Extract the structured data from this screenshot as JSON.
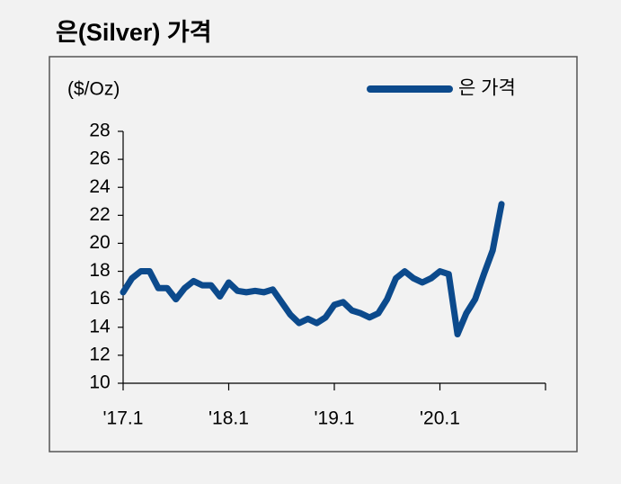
{
  "chart_data": {
    "type": "line",
    "title": "은(Silver) 가격",
    "y_label": "($/Oz)",
    "categories": [
      "'17.1",
      null,
      null,
      null,
      null,
      null,
      null,
      null,
      null,
      null,
      null,
      null,
      "'18.1",
      null,
      null,
      null,
      null,
      null,
      null,
      null,
      null,
      null,
      null,
      null,
      "'19.1",
      null,
      null,
      null,
      null,
      null,
      null,
      null,
      null,
      null,
      null,
      null,
      "'20.1",
      null,
      null,
      null,
      null,
      null,
      null,
      null,
      null,
      null,
      null,
      null,
      null
    ],
    "series": [
      {
        "name": "은 가격",
        "color": "#0c4a8c",
        "values": [
          16.5,
          17.5,
          18.0,
          18.0,
          16.8,
          16.8,
          16.0,
          16.8,
          17.3,
          17.0,
          17.0,
          16.2,
          17.2,
          16.6,
          16.5,
          16.6,
          16.5,
          16.7,
          15.8,
          14.9,
          14.3,
          14.6,
          14.3,
          14.7,
          15.6,
          15.8,
          15.2,
          15.0,
          14.7,
          15.0,
          16.0,
          17.5,
          18.0,
          17.5,
          17.2,
          17.5,
          18.0,
          17.8,
          13.5,
          15.0,
          16.0,
          17.8,
          19.5,
          22.8,
          null,
          null,
          null,
          null,
          null
        ]
      }
    ],
    "ylim": [
      10,
      28
    ],
    "yticks": [
      10,
      12,
      14,
      16,
      18,
      20,
      22,
      24,
      26,
      28
    ],
    "legend": "top-right"
  }
}
